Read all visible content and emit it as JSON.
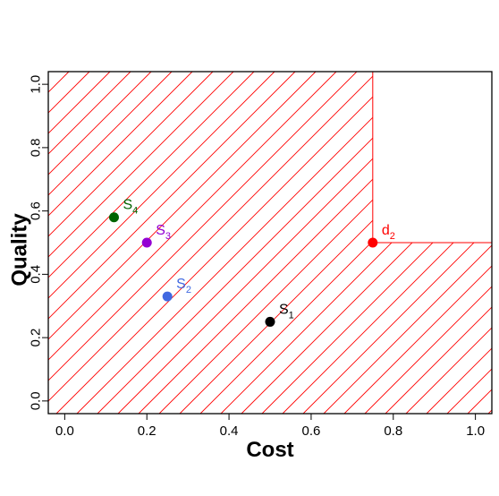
{
  "chart_data": {
    "type": "scatter",
    "xlabel": "Cost",
    "ylabel": "Quality",
    "xlim": [
      -0.04,
      1.04
    ],
    "ylim": [
      -0.04,
      1.04
    ],
    "x_ticks": [
      "0.0",
      "0.2",
      "0.4",
      "0.6",
      "0.8",
      "1.0"
    ],
    "y_ticks": [
      "0.0",
      "0.2",
      "0.4",
      "0.6",
      "0.8",
      "1.0"
    ],
    "grid": false,
    "shaded_region": {
      "description_color": "#ff0000",
      "corner_point": {
        "x": 0.75,
        "y": 0.5
      },
      "fill": "diagonal-hatch"
    },
    "points": [
      {
        "label": "S",
        "sub": "1",
        "x": 0.5,
        "y": 0.25,
        "color": "#000000"
      },
      {
        "label": "S",
        "sub": "2",
        "x": 0.25,
        "y": 0.33,
        "color": "#4169e1"
      },
      {
        "label": "S",
        "sub": "3",
        "x": 0.2,
        "y": 0.5,
        "color": "#9400d3"
      },
      {
        "label": "S",
        "sub": "4",
        "x": 0.12,
        "y": 0.58,
        "color": "#006400"
      },
      {
        "label": "d",
        "sub": "2",
        "x": 0.75,
        "y": 0.5,
        "color": "#ff0000"
      }
    ]
  }
}
